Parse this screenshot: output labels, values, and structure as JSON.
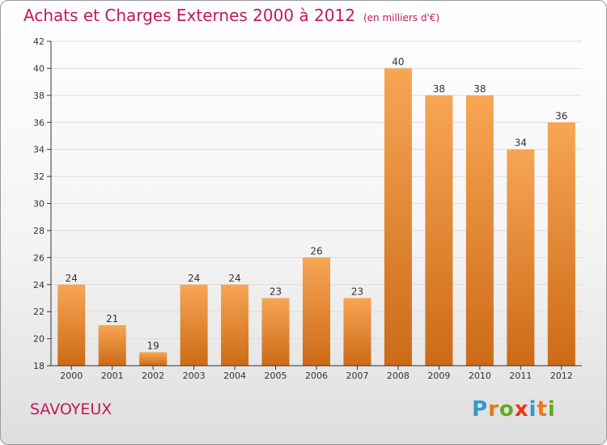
{
  "header": {
    "title": "Achats et Charges Externes 2000 à 2012",
    "subtitle": "(en milliers d'€)"
  },
  "footer": {
    "commune": "SAVOYEUX",
    "logo": {
      "letters": [
        "P",
        "r",
        "o",
        "x",
        "i",
        "t",
        "i"
      ],
      "colors": [
        "#3399cc",
        "#ee7711",
        "#66aa22",
        "#ee3311",
        "#3399cc",
        "#ee7711",
        "#66aa22"
      ]
    }
  },
  "colors": {
    "bar_top": "#f7a654",
    "bar_bottom": "#cc6a17",
    "axis": "#333333",
    "grid": "#dddddd",
    "title": "#c2185b"
  },
  "chart_data": {
    "type": "bar",
    "categories": [
      "2000",
      "2001",
      "2002",
      "2003",
      "2004",
      "2005",
      "2006",
      "2007",
      "2008",
      "2009",
      "2010",
      "2011",
      "2012"
    ],
    "values": [
      24,
      21,
      19,
      24,
      24,
      23,
      26,
      23,
      40,
      38,
      38,
      34,
      36
    ],
    "ylim": [
      18,
      42
    ],
    "yticks": [
      18,
      20,
      22,
      24,
      26,
      28,
      30,
      32,
      34,
      36,
      38,
      40,
      42
    ],
    "grid": true,
    "data_labels": true
  }
}
